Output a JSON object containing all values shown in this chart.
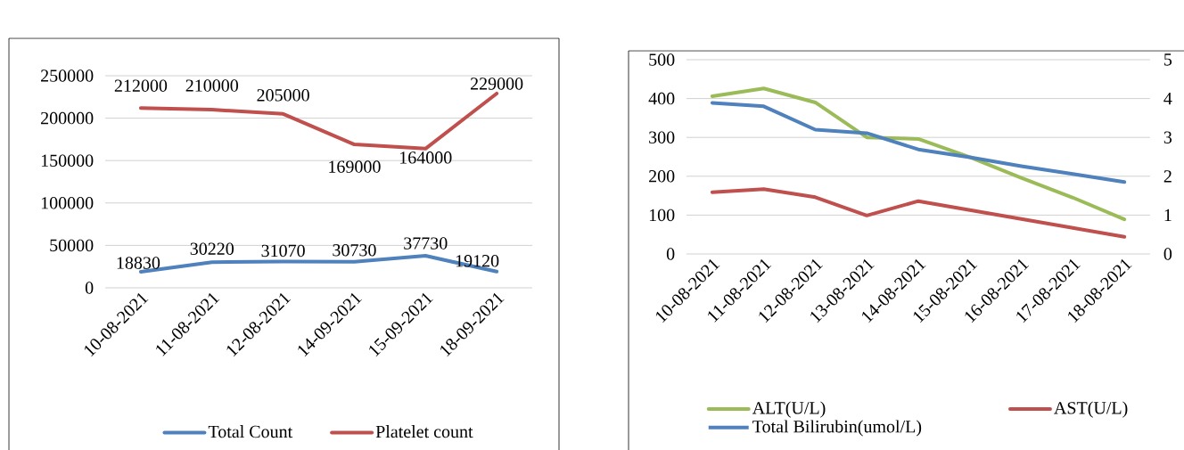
{
  "chart_data": [
    {
      "type": "line",
      "categories": [
        "10-08-2021",
        "11-08-2021",
        "12-08-2021",
        "14-09-2021",
        "15-09-2021",
        "18-09-2021"
      ],
      "series": [
        {
          "name": "Total Count",
          "color": "#4f81bd",
          "values": [
            18830,
            30220,
            31070,
            30730,
            37730,
            19120
          ]
        },
        {
          "name": "Platelet count",
          "color": "#c0504d",
          "values": [
            212000,
            210000,
            205000,
            169000,
            164000,
            229000
          ]
        }
      ],
      "ylim": [
        0,
        250000
      ],
      "yticks": [
        0,
        50000,
        100000,
        150000,
        200000,
        250000
      ],
      "grid": "y",
      "legend": "bottom",
      "data_labels": true
    },
    {
      "type": "line",
      "categories": [
        "10-08-2021",
        "11-08-2021",
        "12-08-2021",
        "13-08-2021",
        "14-08-2021",
        "15-08-2021",
        "16-08-2021",
        "17-08-2021",
        "18-08-2021"
      ],
      "series": [
        {
          "name": "ALT(U/L)",
          "color": "#9bbb59",
          "values": [
            406,
            426,
            390,
            300,
            296,
            249,
            196,
            145,
            89
          ]
        },
        {
          "name": "AST(U/L)",
          "color": "#c0504d",
          "values": [
            159,
            167,
            146,
            99,
            136,
            113,
            90,
            67,
            44
          ]
        },
        {
          "name": "Total Bilirubin(umol/L)",
          "color": "#4f81bd",
          "axis": "y2",
          "values": [
            3.89,
            3.8,
            3.2,
            3.11,
            2.69,
            2.49,
            2.26,
            2.06,
            1.85
          ]
        }
      ],
      "ylim": [
        0,
        500
      ],
      "yticks": [
        0,
        100,
        200,
        300,
        400,
        500
      ],
      "y2lim": [
        0,
        5
      ],
      "y2ticks": [
        0,
        1,
        2,
        3,
        4,
        5
      ],
      "grid": "y",
      "legend": "bottom"
    }
  ]
}
